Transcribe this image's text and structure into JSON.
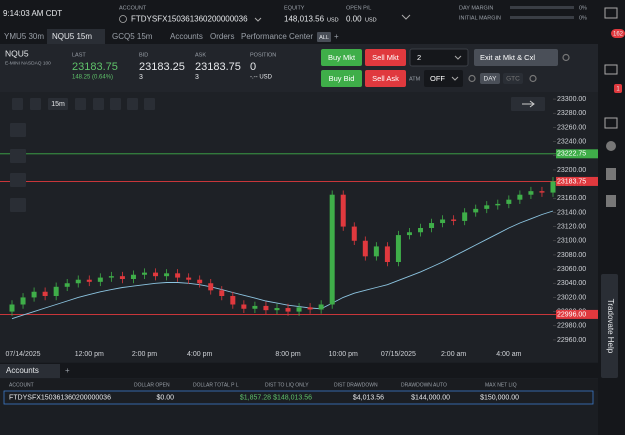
{
  "top_bar": {
    "time": "9:14:03 AM CDT",
    "account_label": "ACCOUNT",
    "account": "FTDYSFX150361360200000036",
    "equity_label": "EQUITY",
    "equity": "148,013.56",
    "equity_unit": "USD",
    "open_pl_label": "OPEN P/L",
    "open_pl": "0.00",
    "open_pl_unit": "USD",
    "day_margin_label": "DAY MARGIN",
    "day_margin": "0%",
    "initial_margin_label": "INITIAL MARGIN",
    "initial_margin": "0%"
  },
  "tabs": [
    "YMU5 30m",
    "NQU5 15m",
    "GCQ5 15m",
    "Accounts",
    "Orders",
    "Performance Center",
    "ALL"
  ],
  "quote": {
    "symbol": "NQU5",
    "description": "E-MINI NASDAQ 100",
    "last_label": "LAST",
    "last": "23183.75",
    "change": "148.25 (0.64%)",
    "bid_label": "BID",
    "bid": "23183.25",
    "bid_size": "3",
    "ask_label": "ASK",
    "ask": "23183.75",
    "ask_size": "3",
    "position_label": "POSITION",
    "position": "0",
    "position_pl": "-.-- USD"
  },
  "order_panel": {
    "buy_mkt": "Buy Mkt",
    "sell_mkt": "Sell Mkt",
    "quantity": "2",
    "exit": "Exit at Mkt & Cxl",
    "buy_bid": "Buy Bid",
    "sell_ask": "Sell Ask",
    "atm_label": "ATM",
    "atm": "OFF",
    "day": "DAY",
    "gtc": "GTC"
  },
  "chart_toolbar": {
    "interval": "15m"
  },
  "chart_data": {
    "type": "candlestick",
    "categories": [
      null,
      "07/14/2025",
      null,
      null,
      null,
      null,
      null,
      "12:00 pm",
      null,
      null,
      null,
      null,
      "2:00 pm",
      null,
      null,
      null,
      null,
      "4:00 pm",
      null,
      null,
      null,
      null,
      null,
      null,
      null,
      "8:00 pm",
      null,
      null,
      null,
      null,
      "10:00 pm",
      null,
      null,
      null,
      null,
      "07/15/2025",
      null,
      null,
      null,
      null,
      "2:00 am",
      null,
      null,
      null,
      null,
      "4:00 am",
      null,
      null,
      null,
      null
    ],
    "open": [
      23000,
      23010,
      23020,
      23028,
      23022,
      23035,
      23040,
      23045,
      23042,
      23048,
      23050,
      23046,
      23052,
      23055,
      23050,
      23054,
      23048,
      23045,
      23040,
      23030,
      23022,
      23010,
      23004,
      23008,
      23002,
      23005,
      23000,
      23006,
      23003,
      23010,
      23165,
      23120,
      23100,
      23078,
      23092,
      23070,
      23108,
      23112,
      23118,
      23125,
      23130,
      23128,
      23140,
      23145,
      23150,
      23152,
      23158,
      23165,
      23170,
      23168
    ],
    "high": [
      23016,
      23026,
      23034,
      23034,
      23041,
      23046,
      23051,
      23051,
      23054,
      23056,
      23056,
      23058,
      23061,
      23061,
      23060,
      23060,
      23054,
      23051,
      23046,
      23036,
      23028,
      23016,
      23014,
      23014,
      23011,
      23011,
      23012,
      23012,
      23016,
      23171,
      23171,
      23126,
      23106,
      23098,
      23098,
      23114,
      23118,
      23124,
      23131,
      23136,
      23136,
      23146,
      23151,
      23156,
      23158,
      23164,
      23171,
      23176,
      23176,
      23190
    ],
    "low": [
      22994,
      23004,
      23014,
      23016,
      23016,
      23029,
      23034,
      23036,
      23036,
      23042,
      23040,
      23040,
      23046,
      23044,
      23044,
      23042,
      23039,
      23034,
      23024,
      23016,
      23004,
      22998,
      22998,
      22996,
      22996,
      22994,
      22994,
      22997,
      22997,
      23004,
      23114,
      23094,
      23072,
      23072,
      23064,
      23064,
      23102,
      23106,
      23112,
      23119,
      23122,
      23122,
      23134,
      23139,
      23144,
      23146,
      23152,
      23159,
      23162,
      23162
    ],
    "close": [
      23010,
      23020,
      23028,
      23022,
      23035,
      23040,
      23045,
      23042,
      23048,
      23050,
      23046,
      23052,
      23055,
      23050,
      23054,
      23048,
      23045,
      23040,
      23030,
      23022,
      23010,
      23004,
      23008,
      23002,
      23005,
      23000,
      23006,
      23003,
      23010,
      23165,
      23120,
      23100,
      23078,
      23092,
      23070,
      23108,
      23112,
      23118,
      23125,
      23130,
      23128,
      23140,
      23145,
      23150,
      23152,
      23158,
      23165,
      23170,
      23168,
      23183.75
    ],
    "ma": [
      22990,
      22995,
      23000,
      23005,
      23010,
      23015,
      23020,
      23024,
      23028,
      23031,
      23034,
      23036,
      23038,
      23040,
      23041,
      23041,
      23040,
      23038,
      23035,
      23031,
      23027,
      23023,
      23019,
      23015,
      23012,
      23009,
      23007,
      23005,
      23004,
      23012,
      23020,
      23026,
      23030,
      23034,
      23038,
      23044,
      23050,
      23056,
      23063,
      23070,
      23078,
      23086,
      23094,
      23102,
      23110,
      23118,
      23125,
      23131,
      23137,
      23142
    ],
    "up_color": "#3fae49",
    "down_color": "#e0393e",
    "ma_color": "#8cc4e0",
    "ylim": [
      22950,
      23310
    ],
    "yticks": [
      {
        "value": 22960,
        "label": "22960.00"
      },
      {
        "value": 22980,
        "label": "22980.00"
      },
      {
        "value": 23000,
        "label": "23000.00"
      },
      {
        "value": 23020,
        "label": "23020.00"
      },
      {
        "value": 23040,
        "label": "23040.00"
      },
      {
        "value": 23060,
        "label": "23060.00"
      },
      {
        "value": 23080,
        "label": "23080.00"
      },
      {
        "value": 23100,
        "label": "23100.00"
      },
      {
        "value": 23120,
        "label": "23120.00"
      },
      {
        "value": 23140,
        "label": "23140.00"
      },
      {
        "value": 23160,
        "label": "23160.00"
      },
      {
        "value": 23180,
        "label": "23180.00"
      },
      {
        "value": 23200,
        "label": "23200.00"
      },
      {
        "value": 23220,
        "label": "23220.00"
      },
      {
        "value": 23240,
        "label": "23240.00"
      },
      {
        "value": 23260,
        "label": "23260.00"
      },
      {
        "value": 23280,
        "label": "23280.00"
      },
      {
        "value": 23300,
        "label": "23300.00"
      }
    ],
    "levels": [
      {
        "price": 23222.75,
        "color": "#3fae49"
      },
      {
        "price": 23183.75,
        "color": "#e0393e"
      },
      {
        "price": {
          "value": 22996,
          "label": "22996.00"
        },
        "color": "#e0393e"
      }
    ]
  },
  "accounts": {
    "tab": "Accounts",
    "add": "+",
    "columns": [
      "ACCOUNT",
      "DOLLAR OPEN",
      "DOLLAR TOTAL P L",
      "DIST TO LIQ ONLY",
      "DIST DRAWDOWN",
      "DRAWDOWN AUTO",
      "MAX NET LIQ"
    ],
    "rows": [
      [
        "FTDYSFX150361360200000036",
        "$0.00",
        "$1,857.28",
        "$148,013.56",
        "$4,013.56",
        "$144,000.00",
        "$150,000.00"
      ]
    ]
  },
  "sidebar": {
    "notifications": "162",
    "alerts": "1",
    "help": "Tradovate Help"
  }
}
